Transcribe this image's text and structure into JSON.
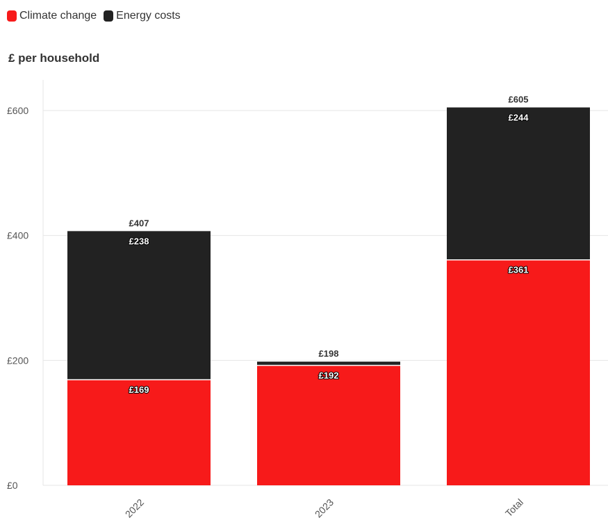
{
  "legend": {
    "climate_label": "Climate change",
    "energy_label": "Energy costs"
  },
  "colors": {
    "climate": "#f71a1a",
    "energy": "#222222",
    "grid": "#e6e6e6"
  },
  "chart_data": {
    "type": "bar",
    "stacked": true,
    "categories": [
      "2022",
      "2023",
      "Total"
    ],
    "series": [
      {
        "name": "Climate change",
        "values": [
          169,
          192,
          361
        ]
      },
      {
        "name": "Energy costs",
        "values": [
          238,
          6,
          244
        ]
      }
    ],
    "totals": [
      407,
      198,
      605
    ],
    "total_labels": [
      "£407",
      "£198",
      "£605"
    ],
    "segment_labels": {
      "Climate change": [
        "£169",
        "£192",
        "£361"
      ],
      "Energy costs": [
        "£238",
        "",
        "£244"
      ]
    },
    "ylabel": "£ per household",
    "yticks": [
      0,
      200,
      400,
      600
    ],
    "ytick_labels": [
      "£0",
      "£200",
      "£400",
      "£600"
    ],
    "ylim": [
      0,
      650
    ],
    "grid": true,
    "legend_position": "top-left"
  }
}
